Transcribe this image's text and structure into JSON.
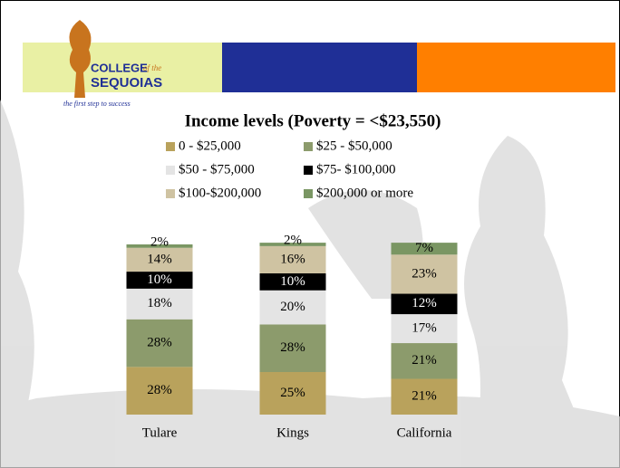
{
  "logo": {
    "college": "COLLEGE",
    "of_the": "of the",
    "sequoias": "SEQUOIAS",
    "tagline": "the first step to success"
  },
  "chart_data": {
    "type": "stacked-bar",
    "title": "Income levels (Poverty = <$23,550)",
    "categories": [
      "Tulare",
      "Kings",
      "California"
    ],
    "series": [
      {
        "name": "0 - $25,000",
        "color": "#b9a25c",
        "values": [
          28,
          25,
          21
        ],
        "value_labels": [
          "28%",
          "25%",
          "21%"
        ]
      },
      {
        "name": "$25 - $50,000",
        "color": "#8c9b6c",
        "values": [
          28,
          28,
          21
        ],
        "value_labels": [
          "28%",
          "28%",
          "21%"
        ]
      },
      {
        "name": "$50 - $75,000",
        "color": "#e4e4e4",
        "values": [
          18,
          20,
          17
        ],
        "value_labels": [
          "18%",
          "20%",
          "17%"
        ]
      },
      {
        "name": "$75- $100,000",
        "color": "#000000",
        "values": [
          10,
          10,
          12
        ],
        "value_labels": [
          "10%",
          "10%",
          "12%"
        ]
      },
      {
        "name": "$100-$200,000",
        "color": "#cfc3a2",
        "values": [
          14,
          16,
          23
        ],
        "value_labels": [
          "14%",
          "16%",
          "23%"
        ]
      },
      {
        "name": "$200,000 or more",
        "color": "#7a9663",
        "values": [
          2,
          2,
          7
        ],
        "value_labels": [
          "2%",
          "2%",
          "7%"
        ]
      }
    ]
  }
}
